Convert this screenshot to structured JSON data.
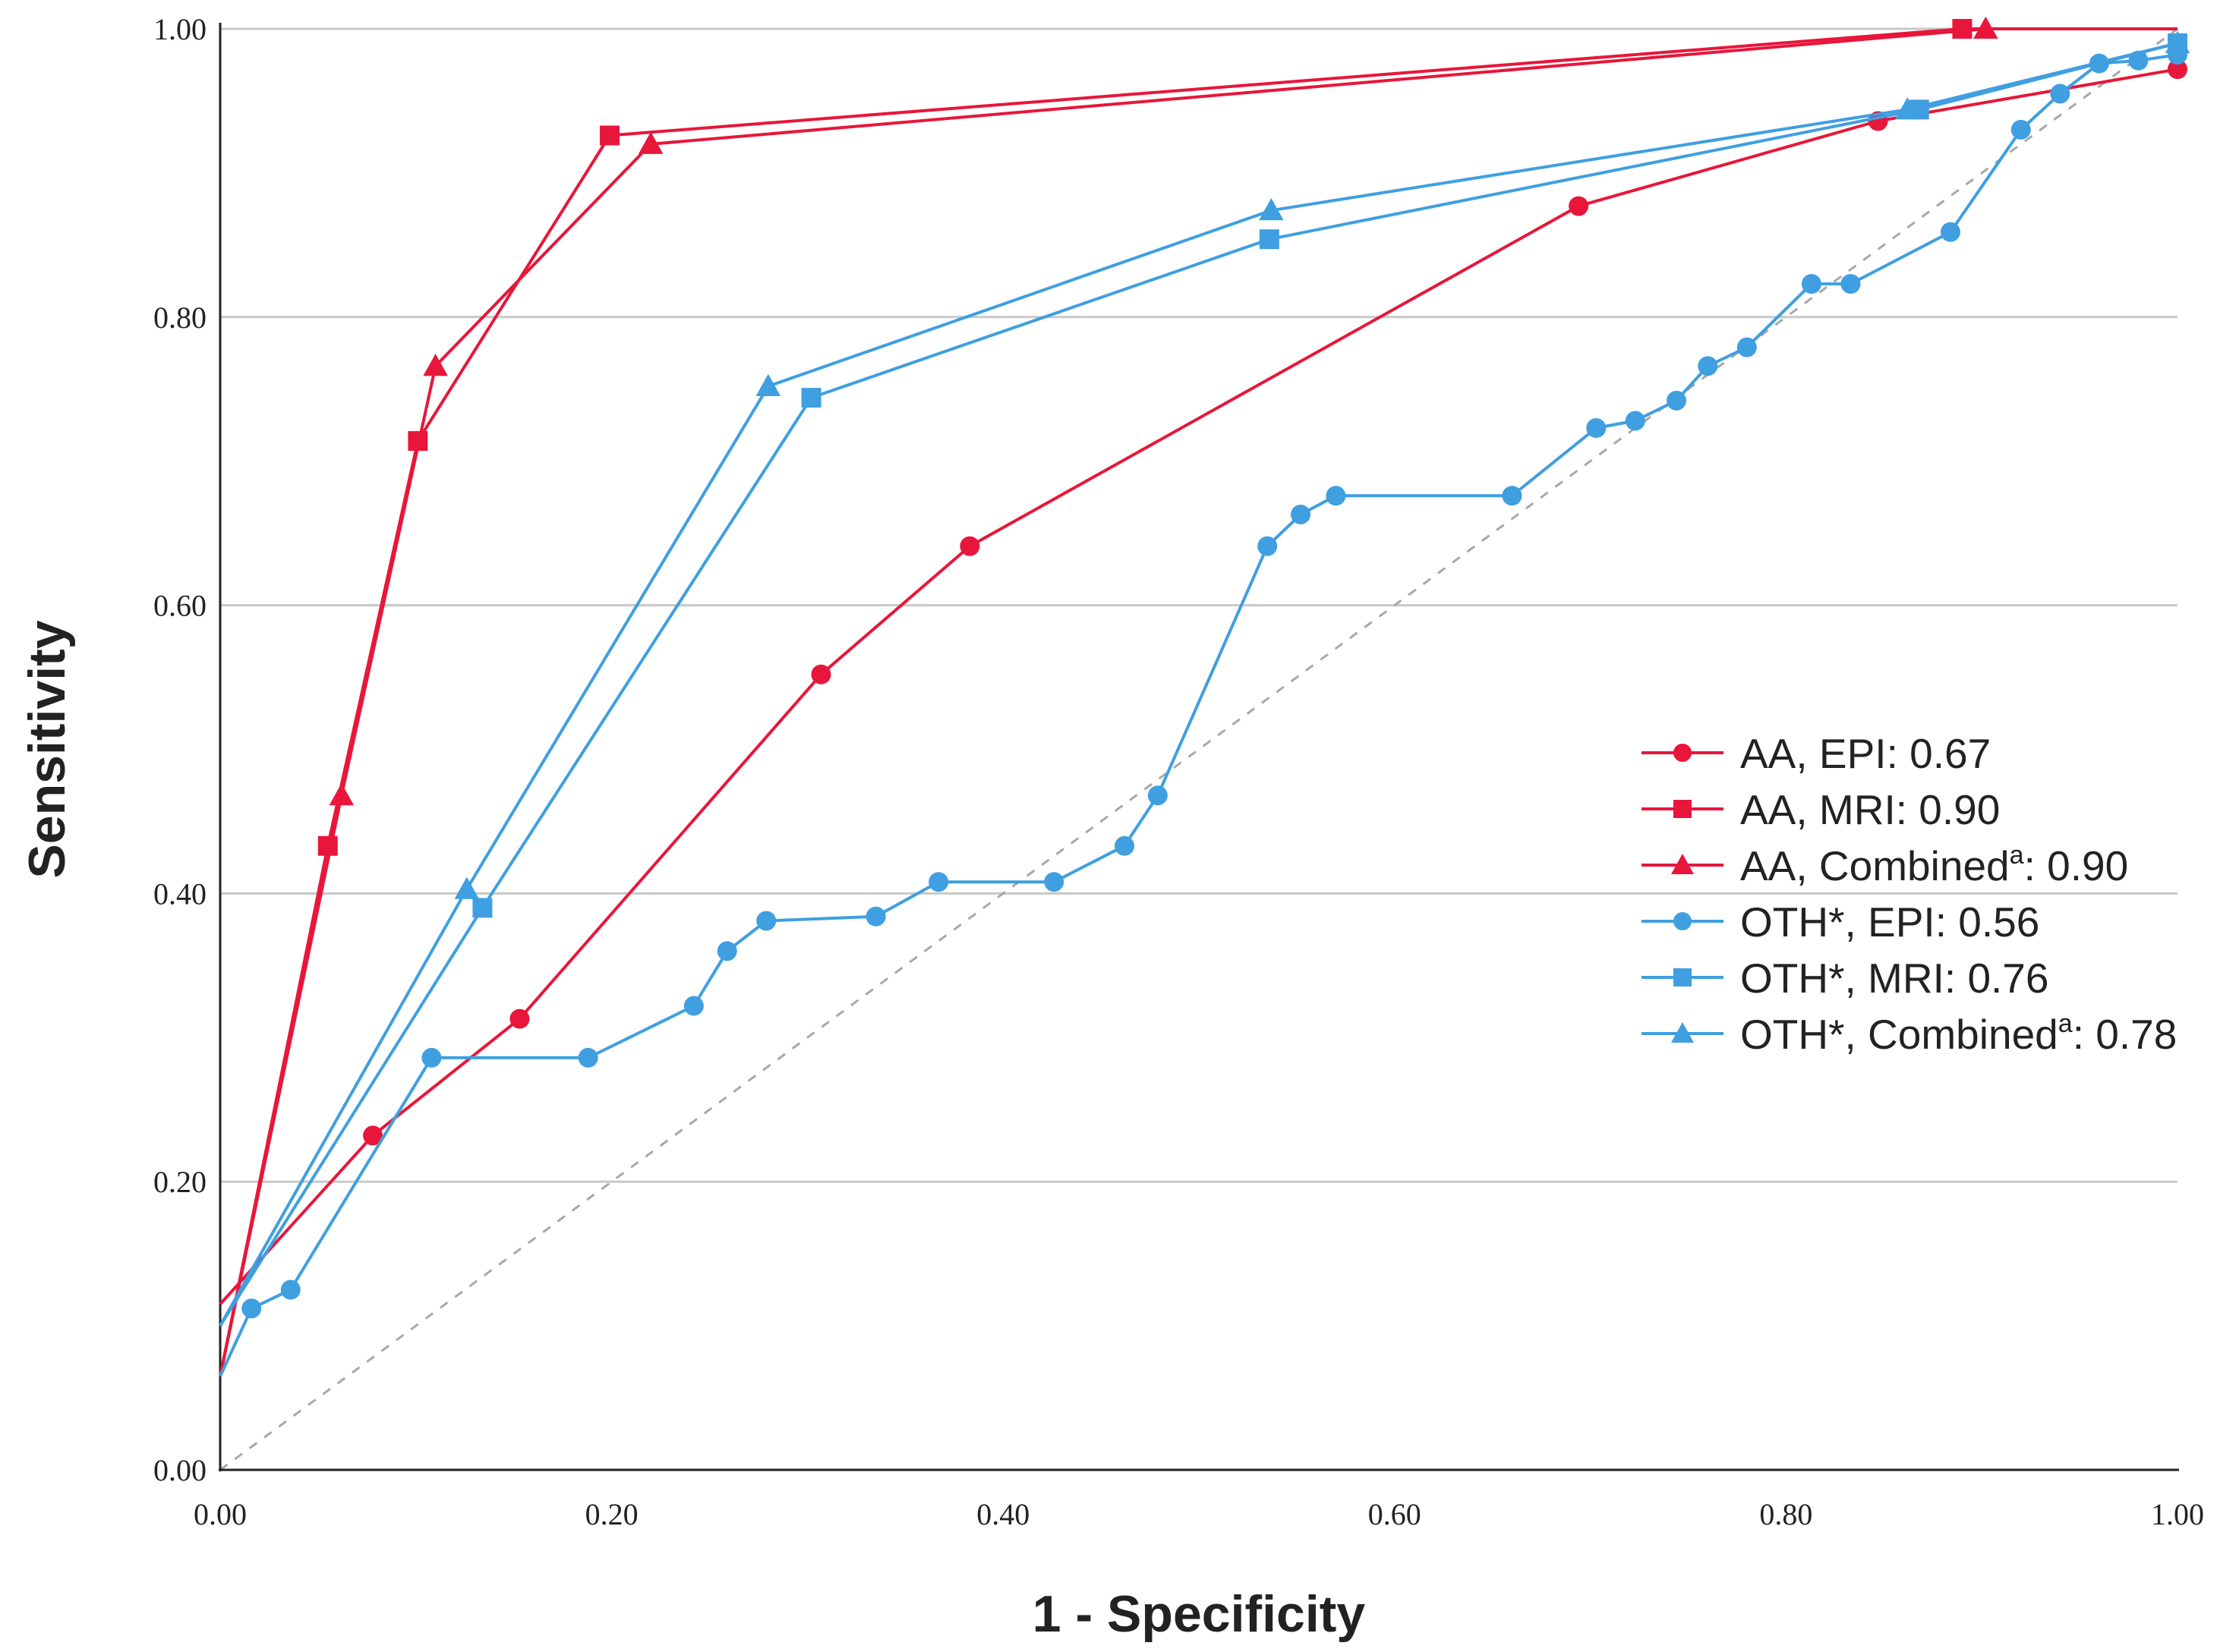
{
  "chart_data": {
    "type": "line",
    "xlabel": "1 - Specificity",
    "ylabel": "Sensitivity",
    "xlim": [
      0,
      1
    ],
    "ylim": [
      0,
      1
    ],
    "xticks": [
      "0.00",
      "0.20",
      "0.40",
      "0.60",
      "0.80",
      "1.00"
    ],
    "yticks": [
      "0.00",
      "0.20",
      "0.40",
      "0.60",
      "0.80",
      "1.00"
    ],
    "grid": "horizontal",
    "reference_line": "diagonal dashed",
    "legend_position": "right-center",
    "series": [
      {
        "name": "AA, EPI: 0.67",
        "color": "#e8163a",
        "marker": "circle",
        "points": [
          [
            0,
            0.115
          ],
          [
            0.078,
            0.232
          ],
          [
            0.153,
            0.313
          ],
          [
            0.307,
            0.552
          ],
          [
            0.383,
            0.641
          ],
          [
            0.694,
            0.877
          ],
          [
            0.847,
            0.936
          ],
          [
            1,
            0.972
          ]
        ]
      },
      {
        "name": "AA, MRI: 0.90",
        "color": "#e8163a",
        "marker": "square",
        "points": [
          [
            0,
            0.065
          ],
          [
            0.055,
            0.433
          ],
          [
            0.101,
            0.714
          ],
          [
            0.199,
            0.926
          ],
          [
            0.89,
            1.0
          ],
          [
            1,
            1.0
          ]
        ]
      },
      {
        "name": "AA, Combined",
        "sup": "a",
        "value": ": 0.90",
        "color": "#e8163a",
        "marker": "triangle",
        "points": [
          [
            0,
            0.065
          ],
          [
            0.062,
            0.468
          ],
          [
            0.11,
            0.766
          ],
          [
            0.22,
            0.92
          ],
          [
            0.902,
            1.0
          ],
          [
            1,
            1.0
          ]
        ]
      },
      {
        "name": "OTH*, EPI: 0.56",
        "color": "#3f9fe0",
        "marker": "circle",
        "points": [
          [
            0,
            0.065
          ],
          [
            0.016,
            0.112
          ],
          [
            0.036,
            0.125
          ],
          [
            0.108,
            0.286
          ],
          [
            0.188,
            0.286
          ],
          [
            0.242,
            0.322
          ],
          [
            0.259,
            0.36
          ],
          [
            0.279,
            0.381
          ],
          [
            0.335,
            0.384
          ],
          [
            0.367,
            0.408
          ],
          [
            0.426,
            0.408
          ],
          [
            0.462,
            0.433
          ],
          [
            0.479,
            0.468
          ],
          [
            0.535,
            0.641
          ],
          [
            0.552,
            0.663
          ],
          [
            0.57,
            0.676
          ],
          [
            0.66,
            0.676
          ],
          [
            0.703,
            0.723
          ],
          [
            0.723,
            0.728
          ],
          [
            0.744,
            0.742
          ],
          [
            0.76,
            0.766
          ],
          [
            0.78,
            0.779
          ],
          [
            0.813,
            0.823
          ],
          [
            0.833,
            0.823
          ],
          [
            0.884,
            0.859
          ],
          [
            0.92,
            0.93
          ],
          [
            0.94,
            0.955
          ],
          [
            0.96,
            0.976
          ],
          [
            0.98,
            0.978
          ],
          [
            1,
            0.982
          ]
        ]
      },
      {
        "name": "OTH*, MRI: 0.76",
        "color": "#3f9fe0",
        "marker": "square",
        "points": [
          [
            0,
            0.1
          ],
          [
            0.134,
            0.39
          ],
          [
            0.302,
            0.744
          ],
          [
            0.536,
            0.854
          ],
          [
            0.868,
            0.944
          ],
          [
            1,
            0.99
          ]
        ]
      },
      {
        "name": "OTH*, Combined",
        "sup": "a",
        "value": ": 0.78",
        "color": "#3f9fe0",
        "marker": "triangle",
        "points": [
          [
            0,
            0.1
          ],
          [
            0.126,
            0.403
          ],
          [
            0.28,
            0.752
          ],
          [
            0.537,
            0.874
          ],
          [
            0.862,
            0.944
          ],
          [
            1,
            0.99
          ]
        ]
      }
    ]
  }
}
